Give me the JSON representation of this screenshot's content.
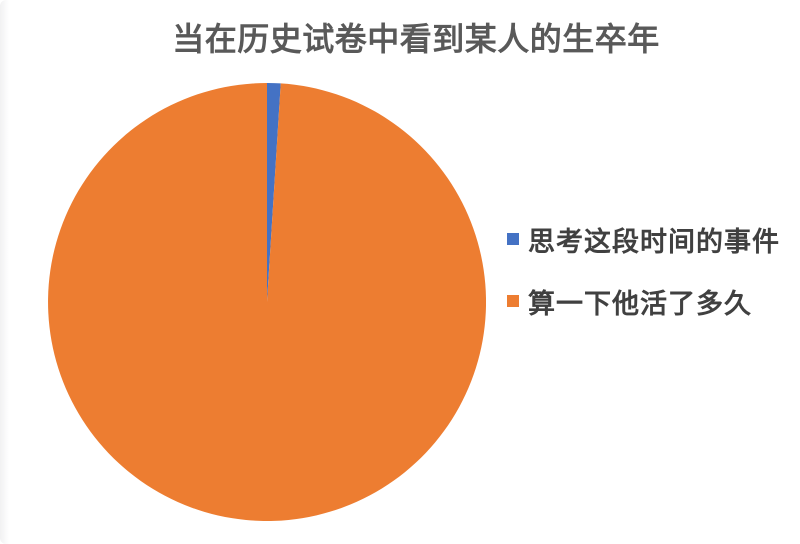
{
  "page": {
    "background_color": "#ffffff"
  },
  "chart_data": {
    "type": "pie",
    "title": "当在历史试卷中看到某人的生卒年",
    "slices": [
      {
        "label": "思考这段时间的事件",
        "value": 1,
        "color": "#4472C4"
      },
      {
        "label": "算一下他活了多久",
        "value": 99,
        "color": "#ED7D31"
      }
    ],
    "start_angle_deg": 0,
    "direction": "clockwise",
    "legend_position": "right",
    "title_color": "#595959",
    "legend_text_color": "#404040",
    "data_labels": "none",
    "gridlines": false
  }
}
